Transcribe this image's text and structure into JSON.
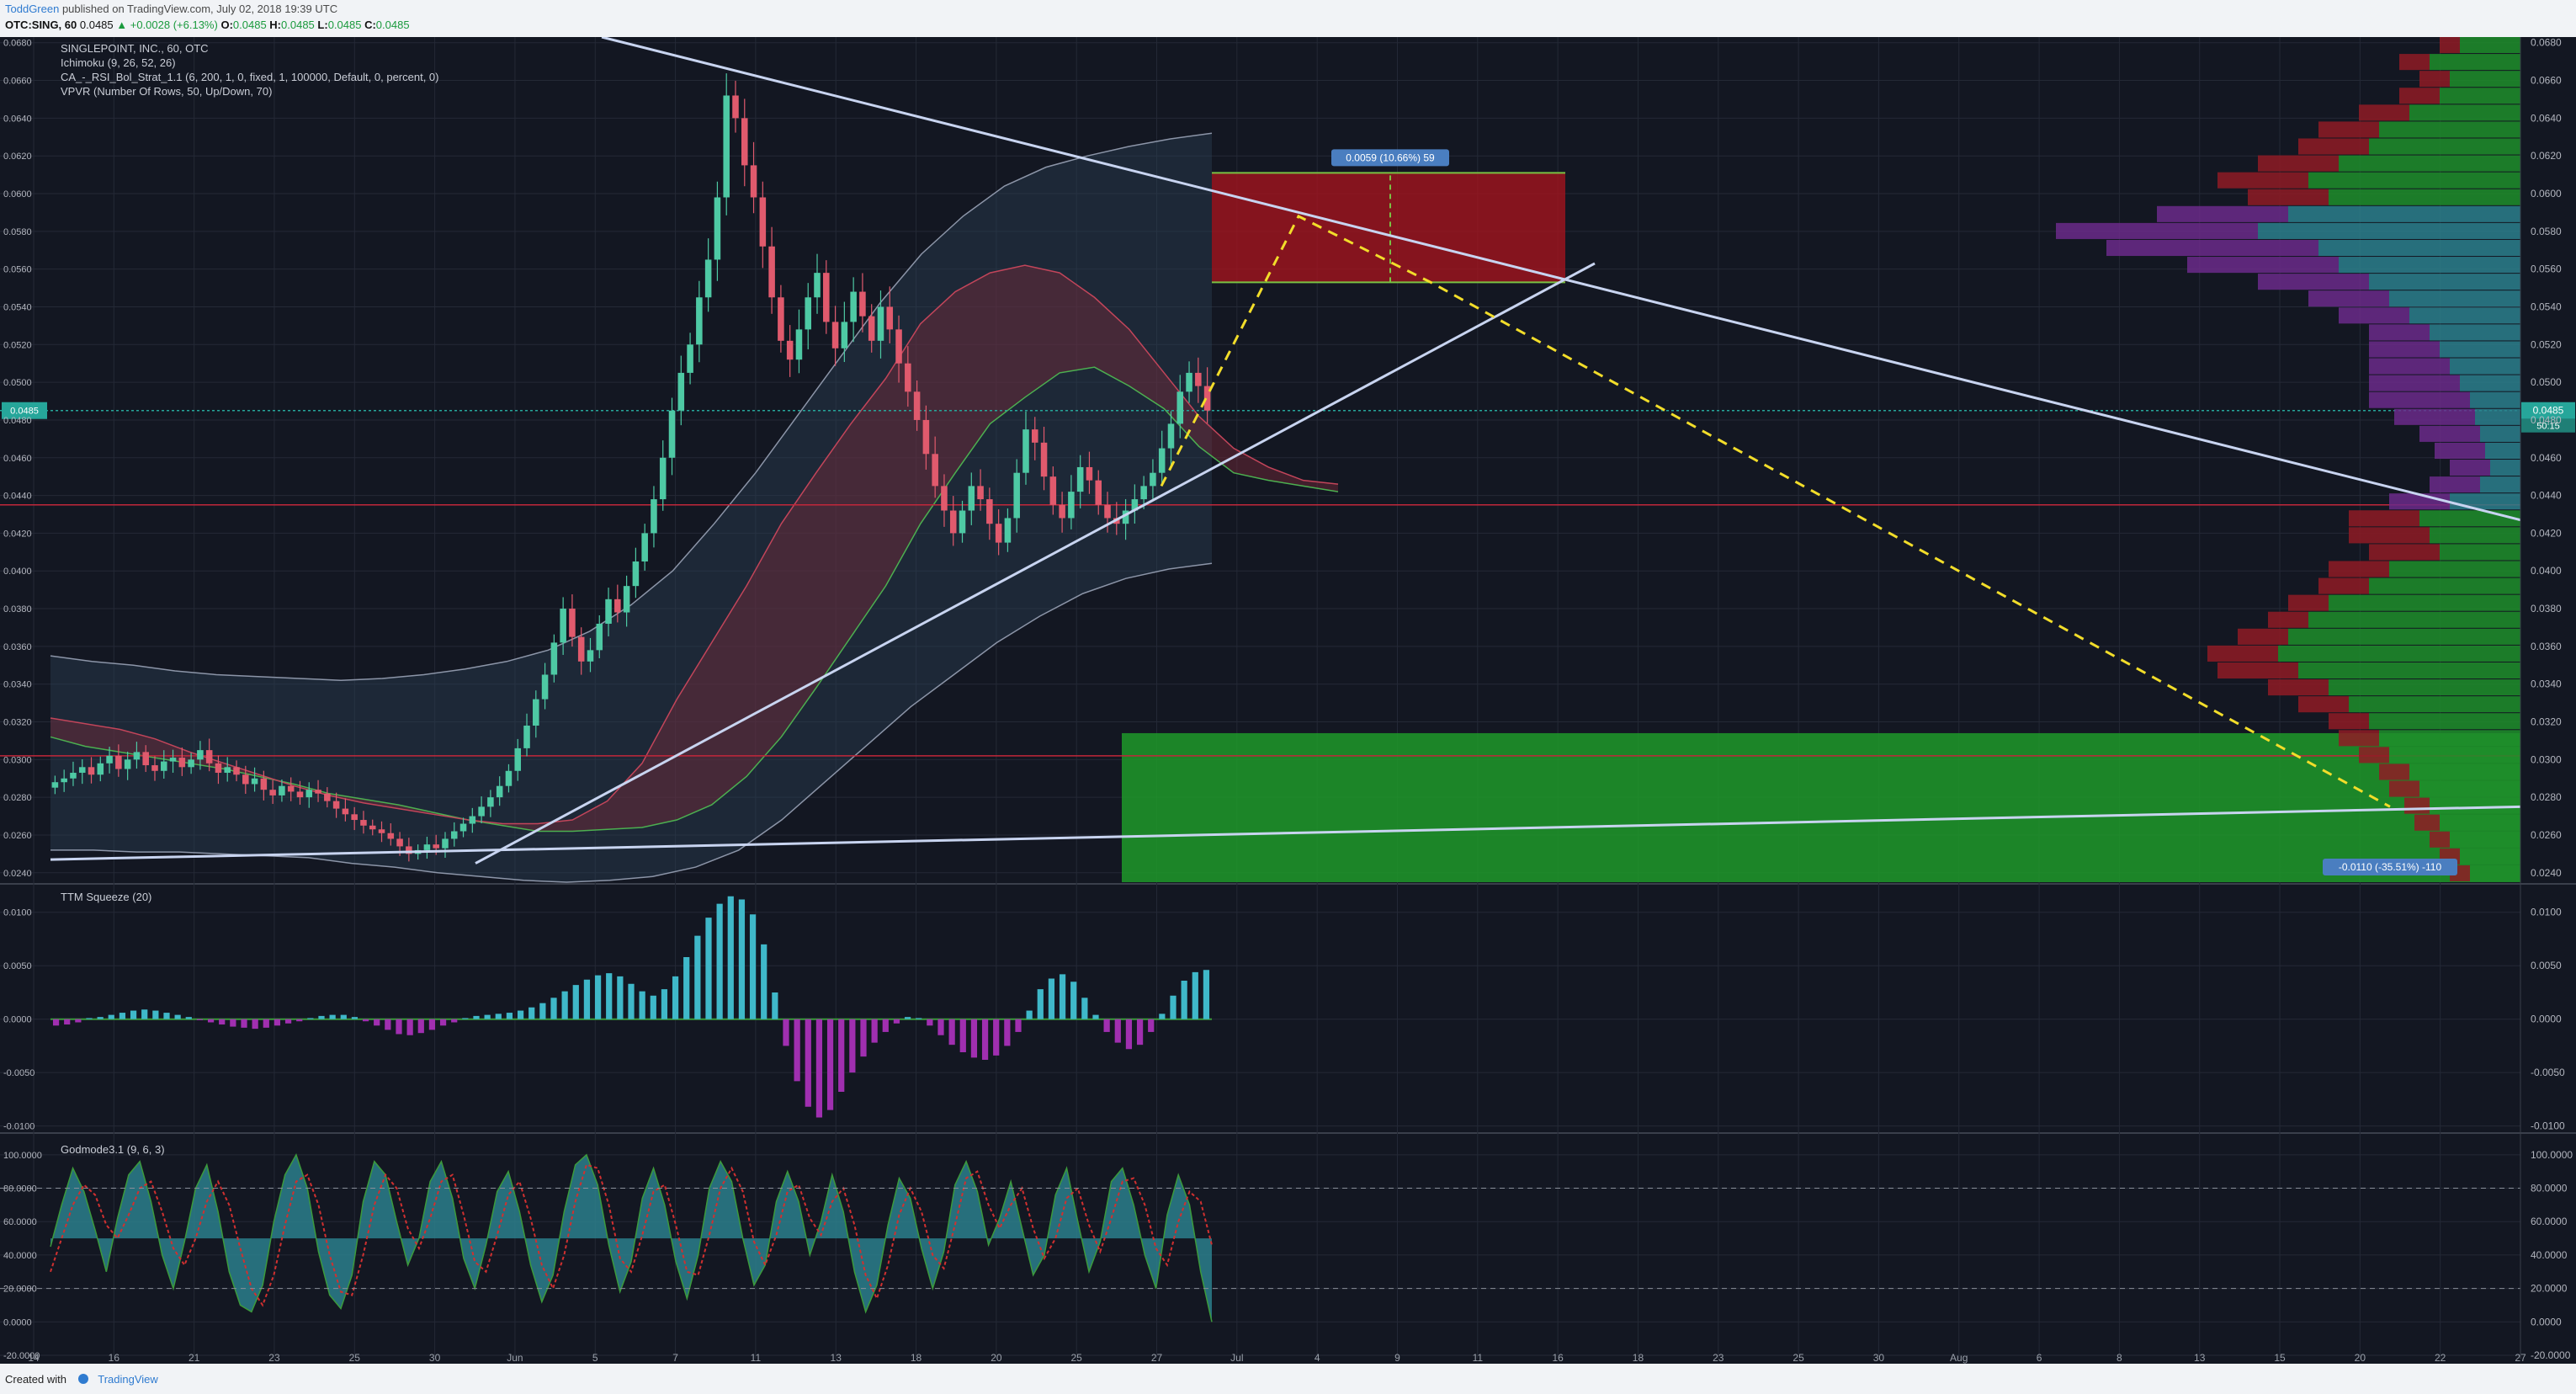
{
  "header": {
    "author": "ToddGreen",
    "published": "published on TradingView.com, July 02, 2018 19:39 UTC",
    "symbol": "OTC:SING, 60",
    "last": "0.0485",
    "change": "▲ +0.0028 (+6.13%)",
    "ohlc": [
      {
        "label": "O:",
        "value": "0.0485"
      },
      {
        "label": "H:",
        "value": "0.0485"
      },
      {
        "label": "L:",
        "value": "0.0485"
      },
      {
        "label": "C:",
        "value": "0.0485"
      }
    ]
  },
  "footer": {
    "created_with": "Created with",
    "brand": "TradingView"
  },
  "legend": [
    "SINGLEPOINT, INC., 60, OTC",
    "Ichimoku (9, 26, 52, 26)",
    "CA_-_RSI_Bol_Strat_1.1 (6, 200, 1, 0, fixed, 1, 100000, Default, 0, percent, 0)",
    "VPVR (Number Of Rows, 50, Up/Down, 70)"
  ],
  "colors": {
    "background": "#131722",
    "grid": "#242936",
    "up": "#4ec9a4",
    "down": "#e05a6d",
    "trendline": "#c8d4f0",
    "target_zone": "#1e9e2a",
    "stop_zone": "#a3141e",
    "projection": "#f2dd2a",
    "squeeze_pos": "#3fb8c9",
    "squeeze_neg": "#a02fb0",
    "godmode_fill": "#2c7f8c",
    "price_tag": "#26a69a",
    "measure_tag": "#4a7ec0"
  },
  "chart_data": [
    {
      "type": "candlestick",
      "title": "SINGLEPOINT, INC., 60, OTC",
      "ylim": [
        0.0235,
        0.0683
      ],
      "y_ticks": [
        "0.0680",
        "0.0660",
        "0.0640",
        "0.0620",
        "0.0600",
        "0.0580",
        "0.0560",
        "0.0540",
        "0.0520",
        "0.0500",
        "0.0480",
        "0.0460",
        "0.0440",
        "0.0420",
        "0.0400",
        "0.0380",
        "0.0360",
        "0.0340",
        "0.0320",
        "0.0300",
        "0.0280",
        "0.0260",
        "0.0240"
      ],
      "x_ticks": [
        "14",
        "16",
        "21",
        "23",
        "25",
        "30",
        "Jun",
        "5",
        "7",
        "11",
        "13",
        "18",
        "20",
        "25",
        "27",
        "Jul",
        "4",
        "9",
        "11",
        "16",
        "18",
        "23",
        "25",
        "30",
        "Aug",
        "6",
        "8",
        "13",
        "15",
        "20",
        "22",
        "27"
      ],
      "last_price": {
        "value": 0.0485,
        "label": "0.0485",
        "countdown": "50:15"
      },
      "ohlc_path": [
        0.0288,
        0.029,
        0.0293,
        0.0296,
        0.0292,
        0.0298,
        0.0302,
        0.0295,
        0.03,
        0.0304,
        0.0297,
        0.0294,
        0.0299,
        0.0301,
        0.0296,
        0.03,
        0.0305,
        0.0298,
        0.0293,
        0.0296,
        0.0292,
        0.0287,
        0.029,
        0.0284,
        0.0281,
        0.0286,
        0.0283,
        0.028,
        0.0284,
        0.0282,
        0.0278,
        0.0274,
        0.0271,
        0.0268,
        0.0265,
        0.0263,
        0.0261,
        0.0258,
        0.0254,
        0.025,
        0.0252,
        0.0255,
        0.0253,
        0.0258,
        0.0262,
        0.0266,
        0.027,
        0.0275,
        0.028,
        0.0286,
        0.0294,
        0.0306,
        0.0318,
        0.0332,
        0.0345,
        0.0362,
        0.038,
        0.0365,
        0.0352,
        0.0358,
        0.0372,
        0.0385,
        0.0378,
        0.0392,
        0.0405,
        0.042,
        0.0438,
        0.046,
        0.0485,
        0.0505,
        0.052,
        0.0545,
        0.0565,
        0.0598,
        0.0652,
        0.064,
        0.0615,
        0.0598,
        0.0572,
        0.0545,
        0.0522,
        0.0512,
        0.0528,
        0.0545,
        0.0558,
        0.0532,
        0.0518,
        0.0532,
        0.0548,
        0.0535,
        0.0522,
        0.054,
        0.0528,
        0.051,
        0.0495,
        0.048,
        0.0462,
        0.0445,
        0.0432,
        0.042,
        0.0432,
        0.0445,
        0.0438,
        0.0425,
        0.0415,
        0.0428,
        0.0452,
        0.0475,
        0.0468,
        0.045,
        0.0435,
        0.0428,
        0.0442,
        0.0455,
        0.0448,
        0.0435,
        0.0428,
        0.0425,
        0.0432,
        0.0438,
        0.0445,
        0.0452,
        0.0465,
        0.0478,
        0.0495,
        0.0505,
        0.0498,
        0.0485
      ],
      "ichimoku_cloud_a": [
        0.0312,
        0.0307,
        0.0304,
        0.0301,
        0.0298,
        0.0295,
        0.0291,
        0.0287,
        0.0282,
        0.0279,
        0.0276,
        0.0272,
        0.0268,
        0.0265,
        0.0262,
        0.0262,
        0.0263,
        0.0264,
        0.0268,
        0.0276,
        0.0291,
        0.0312,
        0.0338,
        0.0365,
        0.0392,
        0.0425,
        0.0452,
        0.0478,
        0.0492,
        0.0505,
        0.0508,
        0.0498,
        0.0486,
        0.0466,
        0.0452,
        0.0448,
        0.0445,
        0.0442
      ],
      "ichimoku_cloud_b": [
        0.0322,
        0.0319,
        0.0316,
        0.0311,
        0.0304,
        0.0298,
        0.0292,
        0.0286,
        0.0281,
        0.0277,
        0.0274,
        0.0271,
        0.0268,
        0.0266,
        0.0266,
        0.0268,
        0.0278,
        0.0298,
        0.0332,
        0.0362,
        0.0392,
        0.0425,
        0.0452,
        0.0478,
        0.0502,
        0.0531,
        0.0548,
        0.0558,
        0.0562,
        0.0558,
        0.0545,
        0.0528,
        0.0505,
        0.0482,
        0.0465,
        0.0455,
        0.0448,
        0.0446
      ],
      "bb_upper": [
        0.0355,
        0.0352,
        0.035,
        0.0347,
        0.0345,
        0.0344,
        0.0343,
        0.0342,
        0.0343,
        0.0345,
        0.0348,
        0.0352,
        0.0358,
        0.0368,
        0.0382,
        0.04,
        0.0425,
        0.0452,
        0.0482,
        0.0512,
        0.0542,
        0.0568,
        0.0588,
        0.0604,
        0.0614,
        0.062,
        0.0625,
        0.0629,
        0.0632
      ],
      "bb_lower": [
        0.0252,
        0.0252,
        0.0251,
        0.0251,
        0.025,
        0.0249,
        0.0248,
        0.0245,
        0.0243,
        0.024,
        0.0238,
        0.0236,
        0.0235,
        0.0236,
        0.0238,
        0.0243,
        0.0252,
        0.0268,
        0.0288,
        0.0308,
        0.0328,
        0.0345,
        0.0362,
        0.0376,
        0.0388,
        0.0396,
        0.0401,
        0.0404
      ],
      "stop_zone": {
        "from": 0.0553,
        "to": 0.0611,
        "label": "0.0059 (10.66%) 59"
      },
      "target_zone": {
        "from": 0.0235,
        "to": 0.0314,
        "label": "-0.0110 (-35.51%) -110"
      },
      "projection_path": [
        0.0445,
        0.0588,
        0.0553,
        0.0275
      ],
      "horizontal_levels": [
        0.0302,
        0.0485,
        0.0435
      ],
      "vpvr_up": [
        0.0012,
        0.0018,
        0.0014,
        0.0016,
        0.0022,
        0.0028,
        0.003,
        0.0036,
        0.0042,
        0.0038,
        0.0046,
        0.0052,
        0.004,
        0.0036,
        0.003,
        0.0026,
        0.0022,
        0.0018,
        0.0016,
        0.0014,
        0.0012,
        0.001,
        0.0009,
        0.0008,
        0.0007,
        0.0006,
        0.0008,
        0.0014,
        0.002,
        0.0018,
        0.0016,
        0.0026,
        0.003,
        0.0038,
        0.0042,
        0.0046,
        0.0048,
        0.0044,
        0.0038,
        0.0034,
        0.003,
        0.0028,
        0.0026,
        0.0022,
        0.002,
        0.0018,
        0.0016,
        0.0014,
        0.0012,
        0.001
      ],
      "vpvr_down": [
        0.0004,
        0.0006,
        0.0006,
        0.0008,
        0.001,
        0.0012,
        0.0014,
        0.0016,
        0.0018,
        0.0016,
        0.0026,
        0.004,
        0.0042,
        0.003,
        0.0022,
        0.0016,
        0.0014,
        0.0012,
        0.0014,
        0.0016,
        0.0018,
        0.002,
        0.0016,
        0.0012,
        0.001,
        0.0008,
        0.001,
        0.0012,
        0.0014,
        0.0016,
        0.0014,
        0.0012,
        0.001,
        0.0008,
        0.0008,
        0.001,
        0.0014,
        0.0016,
        0.0012,
        0.001,
        0.0008,
        0.0008,
        0.0006,
        0.0006,
        0.0006,
        0.0005,
        0.0005,
        0.0004,
        0.0004,
        0.0004
      ]
    },
    {
      "type": "bar",
      "title": "TTM Squeeze (20)",
      "ylim": [
        -0.0105,
        0.0125
      ],
      "y_ticks": [
        "0.0100",
        "0.0050",
        "0.0000",
        "-0.0050",
        "-0.0100"
      ],
      "values": [
        -0.0006,
        -0.0005,
        -0.0003,
        0.0001,
        0.0002,
        0.0004,
        0.0006,
        0.0008,
        0.0009,
        0.0008,
        0.0006,
        0.0004,
        0.0002,
        -0.0001,
        -0.0003,
        -0.0005,
        -0.0007,
        -0.0008,
        -0.0009,
        -0.0008,
        -0.0006,
        -0.0004,
        -0.0002,
        0.0001,
        0.0003,
        0.0004,
        0.0004,
        0.0002,
        -0.0002,
        -0.0006,
        -0.001,
        -0.0014,
        -0.0015,
        -0.0013,
        -0.001,
        -0.0006,
        -0.0003,
        0.0001,
        0.0003,
        0.0004,
        0.0005,
        0.0006,
        0.0008,
        0.0011,
        0.0015,
        0.002,
        0.0026,
        0.0032,
        0.0037,
        0.0041,
        0.0043,
        0.004,
        0.0033,
        0.0026,
        0.0022,
        0.0028,
        0.004,
        0.0058,
        0.0078,
        0.0095,
        0.0108,
        0.0115,
        0.0112,
        0.0098,
        0.007,
        0.0025,
        -0.0025,
        -0.0058,
        -0.0082,
        -0.0092,
        -0.0085,
        -0.0068,
        -0.005,
        -0.0035,
        -0.0022,
        -0.0012,
        -0.0004,
        0.0002,
        0.0001,
        -0.0006,
        -0.0015,
        -0.0024,
        -0.0031,
        -0.0036,
        -0.0038,
        -0.0034,
        -0.0025,
        -0.0012,
        0.0008,
        0.0028,
        0.0038,
        0.0042,
        0.0035,
        0.002,
        0.0004,
        -0.0012,
        -0.0022,
        -0.0028,
        -0.0024,
        -0.0012,
        0.0005,
        0.0022,
        0.0036,
        0.0044,
        0.0046
      ]
    },
    {
      "type": "area",
      "title": "Godmode3.1 (9, 6, 3)",
      "ylim": [
        -22,
        112
      ],
      "y_ticks": [
        "100.0000",
        "80.0000",
        "60.0000",
        "40.0000",
        "20.0000",
        "0.0000",
        "-20.0000"
      ],
      "midline": 50,
      "values": [
        45,
        70,
        92,
        78,
        55,
        30,
        62,
        88,
        96,
        72,
        40,
        20,
        48,
        80,
        94,
        66,
        30,
        10,
        6,
        22,
        60,
        88,
        100,
        80,
        42,
        16,
        8,
        28,
        72,
        96,
        88,
        60,
        34,
        50,
        84,
        96,
        74,
        38,
        20,
        46,
        78,
        90,
        66,
        34,
        12,
        28,
        66,
        94,
        100,
        82,
        46,
        18,
        36,
        74,
        92,
        70,
        36,
        14,
        40,
        80,
        96,
        84,
        50,
        22,
        34,
        72,
        90,
        72,
        40,
        60,
        88,
        66,
        30,
        6,
        22,
        58,
        86,
        74,
        44,
        20,
        42,
        82,
        96,
        78,
        46,
        62,
        84,
        56,
        28,
        40,
        76,
        92,
        60,
        30,
        48,
        84,
        92,
        70,
        40,
        20,
        64,
        88,
        70,
        30,
        0
      ],
      "signal": [
        30,
        50,
        70,
        82,
        76,
        58,
        50,
        64,
        80,
        84,
        66,
        44,
        34,
        50,
        72,
        84,
        70,
        44,
        20,
        10,
        28,
        58,
        84,
        88,
        70,
        40,
        18,
        16,
        40,
        70,
        88,
        80,
        56,
        44,
        62,
        84,
        88,
        64,
        36,
        30,
        52,
        76,
        84,
        62,
        34,
        20,
        40,
        72,
        94,
        92,
        70,
        38,
        30,
        52,
        78,
        82,
        58,
        30,
        28,
        52,
        80,
        92,
        78,
        48,
        34,
        52,
        78,
        82,
        62,
        52,
        72,
        80,
        58,
        28,
        14,
        34,
        64,
        80,
        66,
        40,
        32,
        58,
        86,
        90,
        70,
        56,
        70,
        80,
        56,
        38,
        50,
        74,
        80,
        58,
        42,
        62,
        84,
        86,
        70,
        44,
        34,
        60,
        78,
        72,
        46
      ]
    }
  ]
}
